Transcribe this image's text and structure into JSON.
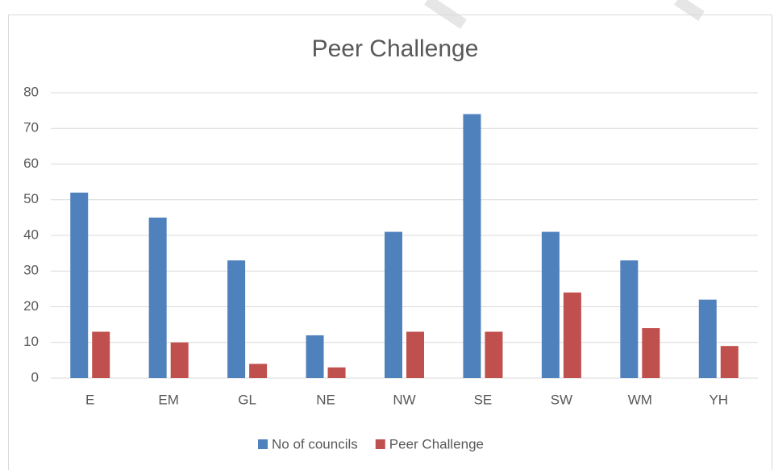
{
  "chart_data": {
    "type": "bar",
    "title": "Peer Challenge",
    "categories": [
      "E",
      "EM",
      "GL",
      "NE",
      "NW",
      "SE",
      "SW",
      "WM",
      "YH"
    ],
    "series": [
      {
        "name": "No of councils",
        "color": "#4f81bd",
        "values": [
          52,
          45,
          33,
          12,
          41,
          74,
          41,
          33,
          22
        ]
      },
      {
        "name": "Peer Challenge",
        "color": "#c0504d",
        "values": [
          13,
          10,
          4,
          3,
          13,
          13,
          24,
          14,
          9
        ]
      }
    ],
    "ylim": [
      0,
      80
    ],
    "yticks": [
      0,
      10,
      20,
      30,
      40,
      50,
      60,
      70,
      80
    ],
    "grid": true,
    "legend": "bottom"
  }
}
